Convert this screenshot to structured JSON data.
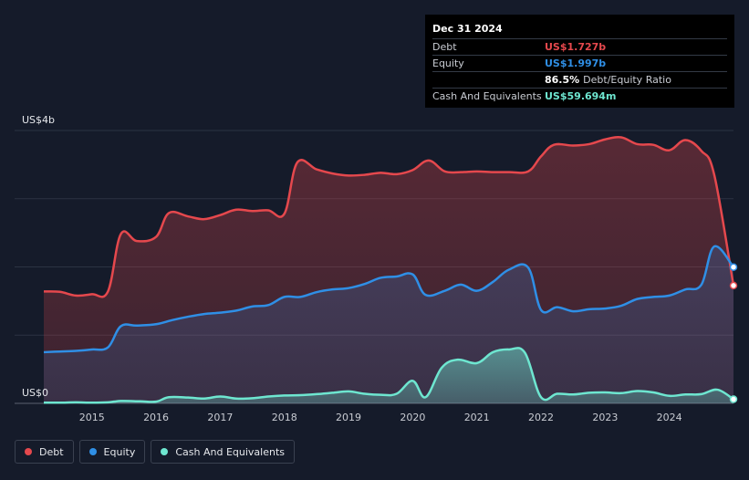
{
  "tooltip": {
    "date": "Dec 31 2024",
    "rows": [
      {
        "label": "Debt",
        "value": "US$1.727b",
        "extra": ""
      },
      {
        "label": "Equity",
        "value": "US$1.997b",
        "extra": ""
      },
      {
        "label": "",
        "value": "86.5%",
        "extra": "Debt/Equity Ratio"
      },
      {
        "label": "Cash And Equivalents",
        "value": "US$59.694m",
        "extra": ""
      }
    ]
  },
  "legend": [
    {
      "label": "Debt",
      "color": "#e5484d"
    },
    {
      "label": "Equity",
      "color": "#2f8fe6"
    },
    {
      "label": "Cash And Equivalents",
      "color": "#6ee6d0"
    }
  ],
  "chart_data": {
    "type": "area",
    "x_range": [
      2014.25,
      2025.0
    ],
    "ylim": [
      0,
      4000
    ],
    "y_tick_labels": [
      {
        "value": 4000,
        "label": "US$4b"
      },
      {
        "value": 0,
        "label": "US$0"
      }
    ],
    "x_ticks": [
      2015,
      2016,
      2017,
      2018,
      2019,
      2020,
      2021,
      2022,
      2023,
      2024
    ],
    "grid": true,
    "legend_position": "bottom-left",
    "series": [
      {
        "name": "Debt",
        "color": "#e5484d",
        "points": [
          [
            2014.25,
            1640
          ],
          [
            2014.5,
            1635
          ],
          [
            2014.75,
            1580
          ],
          [
            2015.0,
            1600
          ],
          [
            2015.25,
            1640
          ],
          [
            2015.45,
            2480
          ],
          [
            2015.7,
            2380
          ],
          [
            2016.0,
            2440
          ],
          [
            2016.2,
            2790
          ],
          [
            2016.5,
            2740
          ],
          [
            2016.75,
            2700
          ],
          [
            2017.0,
            2760
          ],
          [
            2017.25,
            2840
          ],
          [
            2017.5,
            2820
          ],
          [
            2017.75,
            2830
          ],
          [
            2018.0,
            2780
          ],
          [
            2018.2,
            3530
          ],
          [
            2018.5,
            3430
          ],
          [
            2018.75,
            3370
          ],
          [
            2019.0,
            3340
          ],
          [
            2019.25,
            3350
          ],
          [
            2019.5,
            3380
          ],
          [
            2019.75,
            3360
          ],
          [
            2020.0,
            3420
          ],
          [
            2020.25,
            3560
          ],
          [
            2020.5,
            3400
          ],
          [
            2020.75,
            3390
          ],
          [
            2021.0,
            3400
          ],
          [
            2021.25,
            3390
          ],
          [
            2021.5,
            3390
          ],
          [
            2021.8,
            3400
          ],
          [
            2022.0,
            3620
          ],
          [
            2022.2,
            3790
          ],
          [
            2022.5,
            3780
          ],
          [
            2022.75,
            3800
          ],
          [
            2023.0,
            3870
          ],
          [
            2023.25,
            3900
          ],
          [
            2023.5,
            3800
          ],
          [
            2023.75,
            3790
          ],
          [
            2024.0,
            3710
          ],
          [
            2024.25,
            3860
          ],
          [
            2024.5,
            3700
          ],
          [
            2024.7,
            3350
          ],
          [
            2025.0,
            1727
          ]
        ]
      },
      {
        "name": "Equity",
        "color": "#2f8fe6",
        "points": [
          [
            2014.25,
            750
          ],
          [
            2014.5,
            760
          ],
          [
            2014.75,
            770
          ],
          [
            2015.0,
            790
          ],
          [
            2015.25,
            820
          ],
          [
            2015.45,
            1130
          ],
          [
            2015.7,
            1140
          ],
          [
            2016.0,
            1160
          ],
          [
            2016.25,
            1220
          ],
          [
            2016.5,
            1270
          ],
          [
            2016.75,
            1310
          ],
          [
            2017.0,
            1330
          ],
          [
            2017.25,
            1360
          ],
          [
            2017.5,
            1420
          ],
          [
            2017.75,
            1440
          ],
          [
            2018.0,
            1560
          ],
          [
            2018.25,
            1560
          ],
          [
            2018.5,
            1630
          ],
          [
            2018.75,
            1670
          ],
          [
            2019.0,
            1690
          ],
          [
            2019.25,
            1750
          ],
          [
            2019.5,
            1840
          ],
          [
            2019.75,
            1860
          ],
          [
            2020.0,
            1890
          ],
          [
            2020.2,
            1590
          ],
          [
            2020.5,
            1650
          ],
          [
            2020.75,
            1740
          ],
          [
            2021.0,
            1650
          ],
          [
            2021.25,
            1780
          ],
          [
            2021.5,
            1960
          ],
          [
            2021.8,
            1990
          ],
          [
            2022.0,
            1370
          ],
          [
            2022.25,
            1410
          ],
          [
            2022.5,
            1350
          ],
          [
            2022.75,
            1380
          ],
          [
            2023.0,
            1390
          ],
          [
            2023.25,
            1430
          ],
          [
            2023.5,
            1530
          ],
          [
            2023.75,
            1560
          ],
          [
            2024.0,
            1580
          ],
          [
            2024.25,
            1670
          ],
          [
            2024.5,
            1740
          ],
          [
            2024.7,
            2300
          ],
          [
            2025.0,
            1997
          ]
        ]
      },
      {
        "name": "Cash And Equivalents",
        "color": "#6ee6d0",
        "points": [
          [
            2014.25,
            10
          ],
          [
            2014.5,
            10
          ],
          [
            2014.75,
            15
          ],
          [
            2015.0,
            10
          ],
          [
            2015.25,
            15
          ],
          [
            2015.45,
            35
          ],
          [
            2015.75,
            30
          ],
          [
            2016.0,
            25
          ],
          [
            2016.2,
            90
          ],
          [
            2016.5,
            85
          ],
          [
            2016.75,
            70
          ],
          [
            2017.0,
            100
          ],
          [
            2017.25,
            70
          ],
          [
            2017.5,
            75
          ],
          [
            2017.75,
            100
          ],
          [
            2018.0,
            115
          ],
          [
            2018.25,
            120
          ],
          [
            2018.5,
            135
          ],
          [
            2018.75,
            155
          ],
          [
            2019.0,
            175
          ],
          [
            2019.25,
            140
          ],
          [
            2019.5,
            125
          ],
          [
            2019.75,
            140
          ],
          [
            2020.0,
            330
          ],
          [
            2020.2,
            90
          ],
          [
            2020.45,
            520
          ],
          [
            2020.7,
            640
          ],
          [
            2021.0,
            590
          ],
          [
            2021.25,
            750
          ],
          [
            2021.5,
            790
          ],
          [
            2021.75,
            740
          ],
          [
            2022.0,
            90
          ],
          [
            2022.25,
            140
          ],
          [
            2022.5,
            130
          ],
          [
            2022.75,
            155
          ],
          [
            2023.0,
            160
          ],
          [
            2023.25,
            150
          ],
          [
            2023.5,
            180
          ],
          [
            2023.75,
            160
          ],
          [
            2024.0,
            110
          ],
          [
            2024.25,
            130
          ],
          [
            2024.5,
            135
          ],
          [
            2024.75,
            200
          ],
          [
            2025.0,
            60
          ]
        ]
      }
    ]
  }
}
